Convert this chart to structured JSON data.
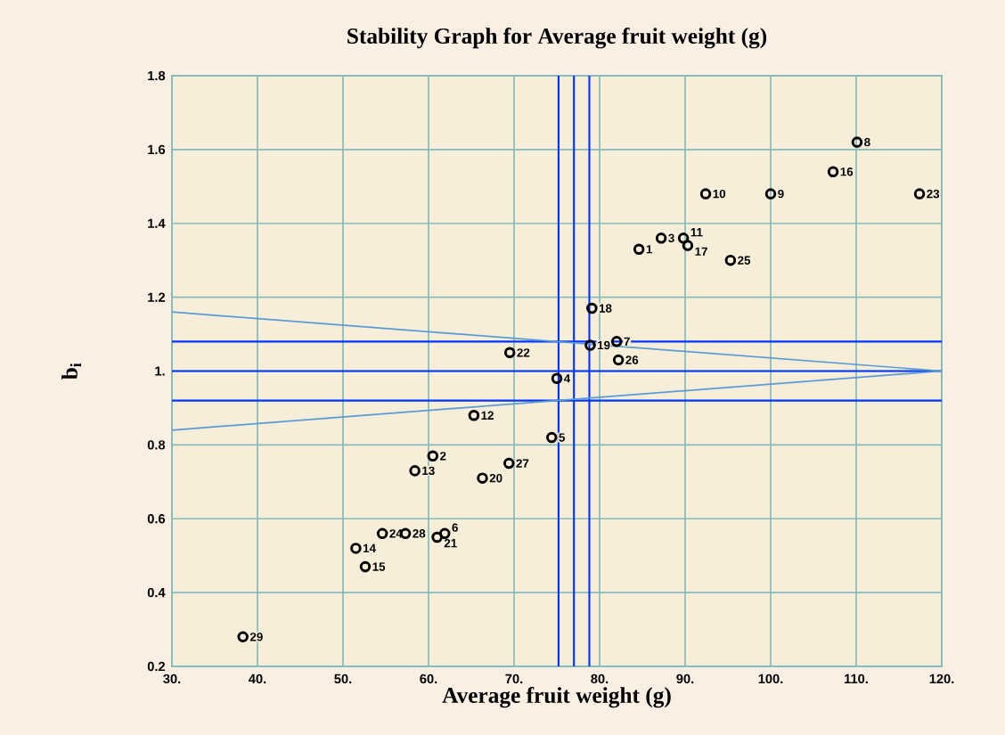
{
  "chart_data": {
    "type": "scatter",
    "title": "Stability Graph for Average fruit weight (g)",
    "xlabel": "Average fruit weight (g)",
    "ylabel": "b$_{i}$",
    "xlim": [
      30,
      120
    ],
    "ylim": [
      0.2,
      1.8
    ],
    "xticks": [
      {
        "value": 30,
        "label": "30."
      },
      {
        "value": 40,
        "label": "40."
      },
      {
        "value": 50,
        "label": "50."
      },
      {
        "value": 60,
        "label": "60."
      },
      {
        "value": 70,
        "label": "70."
      },
      {
        "value": 80,
        "label": "80."
      },
      {
        "value": 90,
        "label": "90."
      },
      {
        "value": 100,
        "label": "100."
      },
      {
        "value": 110,
        "label": "110."
      },
      {
        "value": 120,
        "label": "120."
      }
    ],
    "yticks": [
      0.2,
      0.4,
      0.6,
      0.8,
      {
        "value": 1,
        "label": "1."
      },
      1.2,
      1.4,
      1.6,
      1.8
    ],
    "grid": true,
    "marker": "circle",
    "series": [
      {
        "color": "#000000",
        "x": [
          84.6,
          60.5,
          87.2,
          75.0,
          74.4,
          61.9,
          82.0,
          110.1,
          100.0,
          92.4,
          89.8,
          65.3,
          58.4,
          51.5,
          52.6,
          107.3,
          90.3,
          79.1,
          78.9,
          66.3,
          61.0,
          69.5,
          117.4,
          54.6,
          95.3,
          82.2,
          69.4,
          57.3,
          38.3
        ],
        "values": [
          1.33,
          0.77,
          1.36,
          0.98,
          0.82,
          0.56,
          1.08,
          1.62,
          1.48,
          1.48,
          1.36,
          0.88,
          0.73,
          0.52,
          0.47,
          1.54,
          1.34,
          1.17,
          1.07,
          0.71,
          0.55,
          1.05,
          1.48,
          0.56,
          1.3,
          1.03,
          0.75,
          0.56,
          0.28
        ]
      },
      {
        "type": "line",
        "color": "#5b9bd5",
        "marker": "none",
        "x": [
          30,
          120
        ],
        "values": [
          1.16,
          1.0
        ]
      },
      {
        "type": "line",
        "color": "#5b9bd5",
        "marker": "none",
        "x": [
          30,
          120
        ],
        "values": [
          0.84,
          1.0
        ]
      }
    ],
    "ref_lines": [
      {
        "axis": "x",
        "value": 75.2,
        "color": "#0033ff"
      },
      {
        "axis": "x",
        "value": 77.0,
        "color": "#0033ff"
      },
      {
        "axis": "x",
        "value": 78.8,
        "color": "#0033ff"
      },
      {
        "axis": "y",
        "value": 1.08,
        "color": "#0033ff"
      },
      {
        "axis": "y",
        "value": 1.0,
        "color": "#0033ff"
      },
      {
        "axis": "y",
        "value": 0.92,
        "color": "#0033ff"
      }
    ],
    "annotations": [
      {
        "text": "1",
        "x": 84.6,
        "y": 1.33
      },
      {
        "text": "2",
        "x": 60.5,
        "y": 0.77
      },
      {
        "text": "3",
        "x": 87.2,
        "y": 1.36
      },
      {
        "text": "4",
        "x": 75.0,
        "y": 0.98
      },
      {
        "text": "5",
        "x": 74.4,
        "y": 0.82
      },
      {
        "text": "6",
        "x": 61.9,
        "y": 0.56
      },
      {
        "text": "7",
        "x": 82.0,
        "y": 1.08
      },
      {
        "text": "8",
        "x": 110.1,
        "y": 1.62
      },
      {
        "text": "9",
        "x": 100.0,
        "y": 1.48
      },
      {
        "text": "10",
        "x": 92.4,
        "y": 1.48
      },
      {
        "text": "11",
        "x": 89.8,
        "y": 1.36
      },
      {
        "text": "12",
        "x": 65.3,
        "y": 0.88
      },
      {
        "text": "13",
        "x": 58.4,
        "y": 0.73
      },
      {
        "text": "14",
        "x": 51.5,
        "y": 0.52
      },
      {
        "text": "15",
        "x": 52.6,
        "y": 0.47
      },
      {
        "text": "16",
        "x": 107.3,
        "y": 1.54
      },
      {
        "text": "17",
        "x": 90.3,
        "y": 1.34
      },
      {
        "text": "18",
        "x": 79.1,
        "y": 1.17
      },
      {
        "text": "19",
        "x": 78.9,
        "y": 1.07
      },
      {
        "text": "20",
        "x": 66.3,
        "y": 0.71
      },
      {
        "text": "21",
        "x": 61.0,
        "y": 0.55
      },
      {
        "text": "22",
        "x": 69.5,
        "y": 1.05
      },
      {
        "text": "23",
        "x": 117.4,
        "y": 1.48
      },
      {
        "text": "24",
        "x": 54.6,
        "y": 0.56
      },
      {
        "text": "25",
        "x": 95.3,
        "y": 1.3
      },
      {
        "text": "26",
        "x": 82.2,
        "y": 1.03
      },
      {
        "text": "27",
        "x": 69.4,
        "y": 0.75
      },
      {
        "text": "28",
        "x": 57.3,
        "y": 0.56
      },
      {
        "text": "29",
        "x": 38.3,
        "y": 0.28
      }
    ]
  }
}
